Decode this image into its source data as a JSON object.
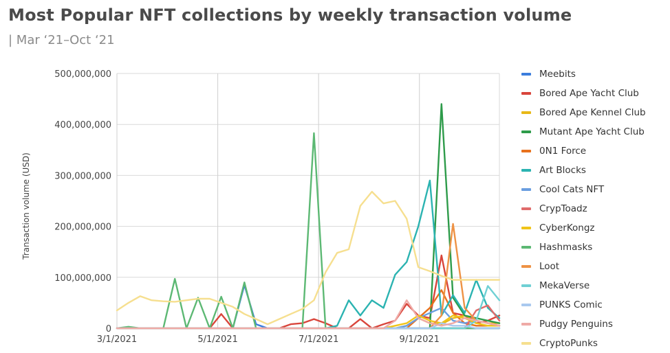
{
  "chart_data": {
    "type": "line",
    "title": "Most Popular NFT collections by weekly transaction volume",
    "subtitle": "| Mar ‘21–Oct ‘21",
    "ylabel": "Transaction volume (USD)",
    "xlabel": "",
    "ylim": [
      0,
      500000000
    ],
    "yticks": [
      "0",
      "100,000,000",
      "200,000,000",
      "300,000,000",
      "400,000,000",
      "500,000,000"
    ],
    "x_tick_labels": [
      "3/1/2021",
      "5/1/2021",
      "7/1/2021",
      "9/1/2021"
    ],
    "x_tick_weeks": [
      0,
      8.7,
      17.4,
      26.1
    ],
    "grid": true,
    "legend_position": "right",
    "weeks": 34,
    "series": [
      {
        "name": "Meebits",
        "color": "#3b7ddd",
        "values": [
          0,
          0,
          0,
          0,
          0,
          0,
          0,
          0,
          0,
          0,
          0,
          85000000,
          8000000,
          0,
          0,
          0,
          0,
          0,
          0,
          0,
          0,
          0,
          0,
          0,
          0,
          0,
          0,
          0,
          0,
          0,
          0,
          0,
          0,
          0
        ]
      },
      {
        "name": "Bored Ape Yacht Club",
        "color": "#d9453b",
        "values": [
          0,
          0,
          0,
          0,
          0,
          0,
          0,
          0,
          0,
          28000000,
          0,
          0,
          0,
          0,
          0,
          8000000,
          10000000,
          18000000,
          10000000,
          0,
          0,
          18000000,
          0,
          8000000,
          15000000,
          48000000,
          25000000,
          20000000,
          143000000,
          30000000,
          25000000,
          10000000,
          15000000,
          25000000
        ]
      },
      {
        "name": "Bored Ape Kennel Club",
        "color": "#e8b817",
        "values": [
          0,
          0,
          0,
          0,
          0,
          0,
          0,
          0,
          0,
          0,
          0,
          0,
          0,
          0,
          0,
          0,
          0,
          0,
          0,
          0,
          0,
          0,
          0,
          0,
          0,
          5000000,
          20000000,
          10000000,
          8000000,
          20000000,
          25000000,
          15000000,
          10000000,
          10000000
        ]
      },
      {
        "name": "Mutant Ape Yacht Club",
        "color": "#2e9b4a",
        "values": [
          0,
          0,
          0,
          0,
          0,
          0,
          0,
          0,
          0,
          0,
          0,
          0,
          0,
          0,
          0,
          0,
          0,
          0,
          0,
          0,
          0,
          0,
          0,
          0,
          0,
          0,
          0,
          0,
          440000000,
          60000000,
          25000000,
          20000000,
          15000000,
          10000000
        ]
      },
      {
        "name": "0N1 Force",
        "color": "#e8711c",
        "values": [
          0,
          0,
          0,
          0,
          0,
          0,
          0,
          0,
          0,
          0,
          0,
          0,
          0,
          0,
          0,
          0,
          0,
          0,
          0,
          0,
          0,
          0,
          0,
          0,
          0,
          0,
          20000000,
          40000000,
          75000000,
          30000000,
          10000000,
          5000000,
          5000000,
          5000000
        ]
      },
      {
        "name": "Art Blocks",
        "color": "#2bb3b1",
        "values": [
          0,
          0,
          0,
          0,
          0,
          0,
          0,
          0,
          0,
          0,
          0,
          0,
          0,
          0,
          0,
          0,
          0,
          0,
          0,
          5000000,
          55000000,
          25000000,
          55000000,
          40000000,
          105000000,
          130000000,
          200000000,
          290000000,
          25000000,
          65000000,
          30000000,
          95000000,
          40000000,
          20000000
        ]
      },
      {
        "name": "Cool Cats NFT",
        "color": "#6a9ee0",
        "values": [
          0,
          0,
          0,
          0,
          0,
          0,
          0,
          0,
          0,
          0,
          0,
          0,
          0,
          0,
          0,
          0,
          0,
          0,
          0,
          0,
          0,
          0,
          0,
          0,
          0,
          5000000,
          20000000,
          30000000,
          40000000,
          15000000,
          10000000,
          15000000,
          10000000,
          5000000
        ]
      },
      {
        "name": "CrypToadz",
        "color": "#e06b6b",
        "values": [
          0,
          0,
          0,
          0,
          0,
          0,
          0,
          0,
          0,
          0,
          0,
          0,
          0,
          0,
          0,
          0,
          0,
          0,
          0,
          0,
          0,
          0,
          0,
          0,
          0,
          0,
          0,
          0,
          0,
          0,
          0,
          35000000,
          45000000,
          15000000
        ]
      },
      {
        "name": "CyberKongz",
        "color": "#f0c419",
        "values": [
          0,
          0,
          0,
          0,
          0,
          0,
          0,
          0,
          0,
          0,
          0,
          0,
          0,
          0,
          0,
          0,
          0,
          0,
          0,
          0,
          0,
          0,
          0,
          0,
          5000000,
          10000000,
          25000000,
          15000000,
          10000000,
          25000000,
          20000000,
          10000000,
          5000000,
          5000000
        ]
      },
      {
        "name": "Hashmasks",
        "color": "#5cb873",
        "values": [
          0,
          3000000,
          0,
          0,
          0,
          97000000,
          0,
          60000000,
          0,
          62000000,
          0,
          90000000,
          0,
          0,
          0,
          0,
          0,
          383000000,
          0,
          0,
          0,
          0,
          0,
          0,
          0,
          0,
          0,
          0,
          0,
          0,
          0,
          0,
          0,
          0
        ]
      },
      {
        "name": "Loot",
        "color": "#ee9245",
        "values": [
          0,
          0,
          0,
          0,
          0,
          0,
          0,
          0,
          0,
          0,
          0,
          0,
          0,
          0,
          0,
          0,
          0,
          0,
          0,
          0,
          0,
          0,
          0,
          0,
          0,
          0,
          0,
          0,
          25000000,
          205000000,
          40000000,
          15000000,
          10000000,
          5000000
        ]
      },
      {
        "name": "MekaVerse",
        "color": "#6fd0d4",
        "values": [
          0,
          0,
          0,
          0,
          0,
          0,
          0,
          0,
          0,
          0,
          0,
          0,
          0,
          0,
          0,
          0,
          0,
          0,
          0,
          0,
          0,
          0,
          0,
          0,
          0,
          0,
          0,
          0,
          0,
          0,
          0,
          15000000,
          83000000,
          55000000
        ]
      },
      {
        "name": "PUNKS Comic",
        "color": "#a9c9ef",
        "values": [
          0,
          0,
          0,
          0,
          0,
          0,
          0,
          0,
          0,
          0,
          0,
          0,
          0,
          0,
          0,
          0,
          0,
          0,
          0,
          0,
          0,
          0,
          0,
          0,
          0,
          0,
          0,
          0,
          10000000,
          5000000,
          5000000,
          0,
          0,
          0
        ]
      },
      {
        "name": "Pudgy Penguins",
        "color": "#efaaa6",
        "values": [
          0,
          0,
          0,
          0,
          0,
          0,
          0,
          0,
          0,
          0,
          0,
          0,
          0,
          0,
          0,
          0,
          0,
          0,
          0,
          0,
          0,
          0,
          0,
          0,
          15000000,
          55000000,
          20000000,
          10000000,
          5000000,
          10000000,
          20000000,
          15000000,
          10000000,
          5000000
        ]
      },
      {
        "name": "CryptoPunks",
        "color": "#f6df8f",
        "values": [
          35000000,
          50000000,
          63000000,
          55000000,
          53000000,
          52000000,
          55000000,
          58000000,
          58000000,
          50000000,
          42000000,
          28000000,
          18000000,
          8000000,
          18000000,
          28000000,
          38000000,
          55000000,
          110000000,
          148000000,
          155000000,
          240000000,
          268000000,
          245000000,
          250000000,
          215000000,
          120000000,
          112000000,
          103000000,
          95000000,
          95000000,
          95000000,
          95000000,
          95000000
        ]
      }
    ]
  }
}
